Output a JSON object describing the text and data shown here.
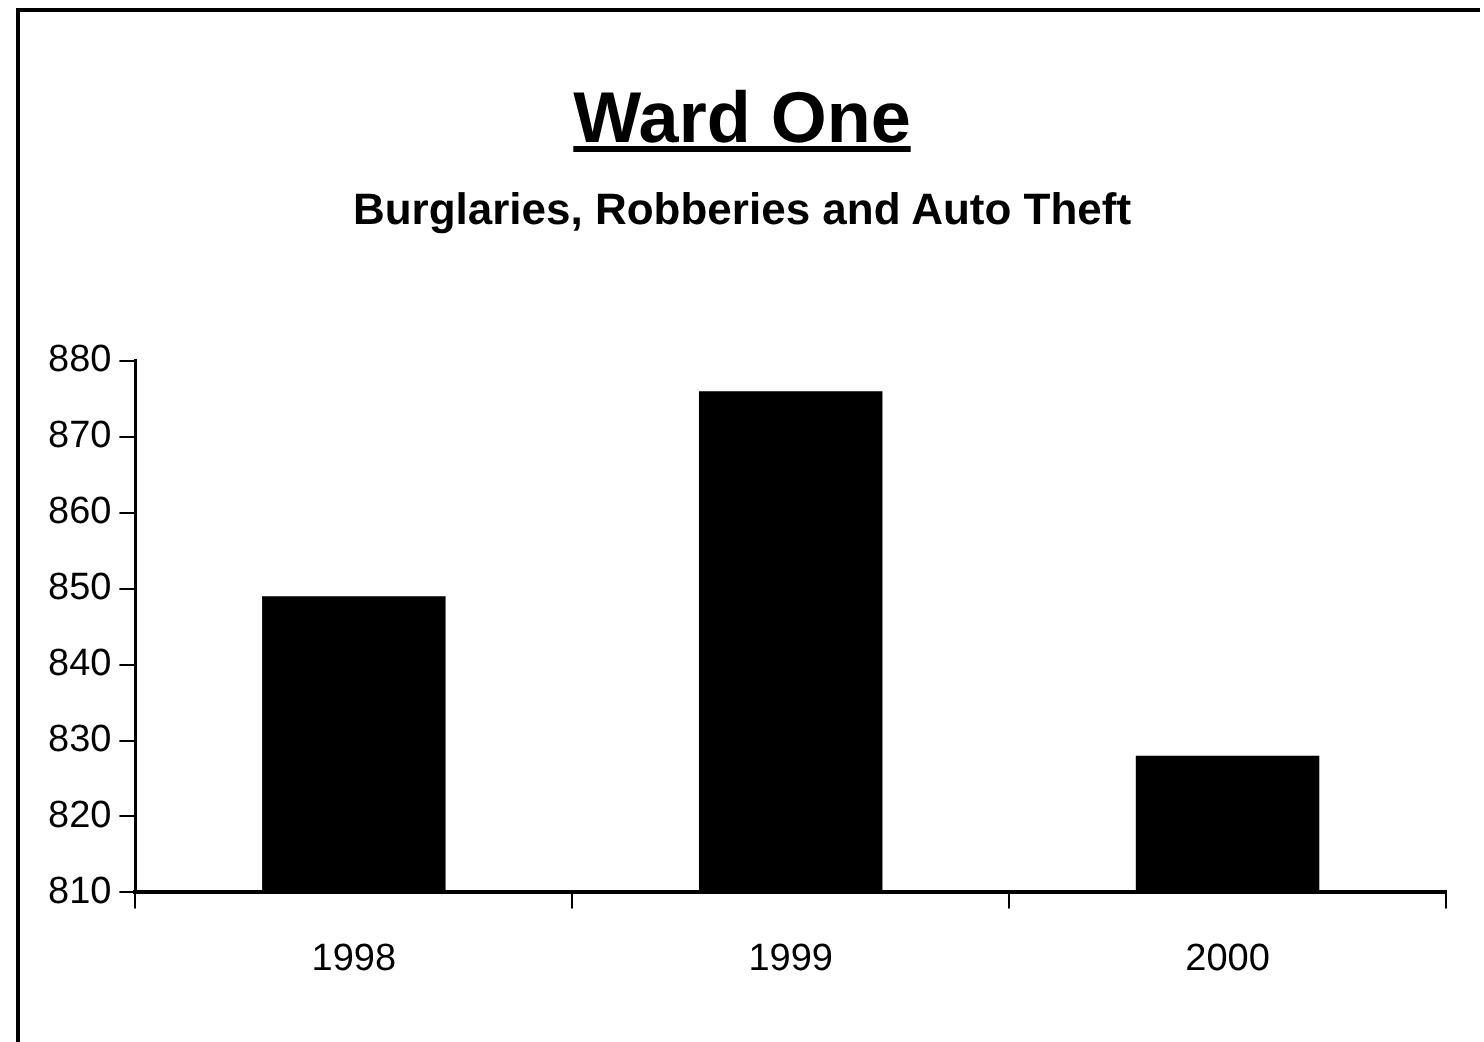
{
  "chart_data": {
    "type": "bar",
    "title": "Ward One",
    "subtitle": "Burglaries, Robberies and Auto Theft",
    "categories": [
      "1998",
      "1999",
      "2000"
    ],
    "values": [
      849,
      876,
      828
    ],
    "color": "#000000",
    "ylim": [
      810,
      880
    ],
    "yticks": [
      810,
      820,
      830,
      840,
      850,
      860,
      870,
      880
    ],
    "grid": false,
    "legend": false
  }
}
